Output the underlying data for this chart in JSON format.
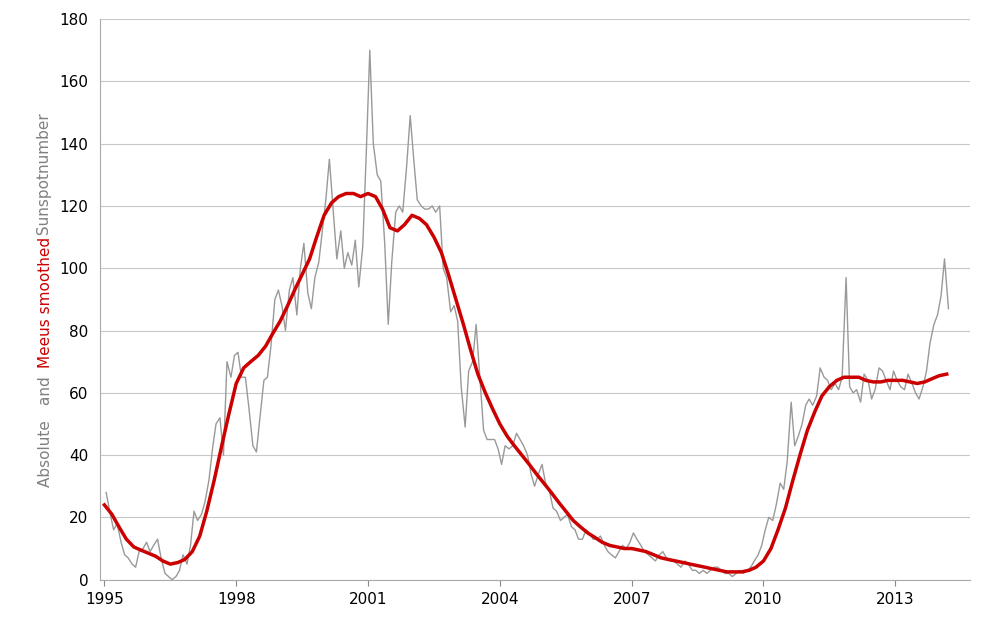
{
  "xlim": [
    1994.9,
    2014.7
  ],
  "ylim": [
    0,
    180
  ],
  "yticks": [
    0,
    20,
    40,
    60,
    80,
    100,
    120,
    140,
    160,
    180
  ],
  "xticks": [
    1995,
    1998,
    2001,
    2004,
    2007,
    2010,
    2013
  ],
  "background_color": "#ffffff",
  "grid_color": "#c8c8c8",
  "raw_color": "#999999",
  "smooth_color": "#cc0000",
  "raw_linewidth": 1.0,
  "smooth_linewidth": 2.5,
  "tick_fontsize": 11,
  "label_fontsize": 11,
  "monthly_data": [
    [
      1995.04,
      28
    ],
    [
      1995.12,
      22
    ],
    [
      1995.21,
      16
    ],
    [
      1995.29,
      18
    ],
    [
      1995.38,
      12
    ],
    [
      1995.46,
      8
    ],
    [
      1995.54,
      7
    ],
    [
      1995.63,
      5
    ],
    [
      1995.71,
      4
    ],
    [
      1995.79,
      9
    ],
    [
      1995.88,
      10
    ],
    [
      1995.96,
      12
    ],
    [
      1996.04,
      9
    ],
    [
      1996.12,
      11
    ],
    [
      1996.21,
      13
    ],
    [
      1996.29,
      7
    ],
    [
      1996.38,
      2
    ],
    [
      1996.46,
      1
    ],
    [
      1996.54,
      0
    ],
    [
      1996.63,
      1
    ],
    [
      1996.71,
      3
    ],
    [
      1996.79,
      8
    ],
    [
      1996.88,
      5
    ],
    [
      1996.96,
      11
    ],
    [
      1997.04,
      22
    ],
    [
      1997.12,
      19
    ],
    [
      1997.21,
      21
    ],
    [
      1997.29,
      25
    ],
    [
      1997.38,
      32
    ],
    [
      1997.46,
      42
    ],
    [
      1997.54,
      50
    ],
    [
      1997.63,
      52
    ],
    [
      1997.71,
      40
    ],
    [
      1997.79,
      70
    ],
    [
      1997.88,
      65
    ],
    [
      1997.96,
      72
    ],
    [
      1998.04,
      73
    ],
    [
      1998.12,
      65
    ],
    [
      1998.21,
      65
    ],
    [
      1998.29,
      55
    ],
    [
      1998.38,
      43
    ],
    [
      1998.46,
      41
    ],
    [
      1998.54,
      52
    ],
    [
      1998.63,
      64
    ],
    [
      1998.71,
      65
    ],
    [
      1998.79,
      75
    ],
    [
      1998.88,
      90
    ],
    [
      1998.96,
      93
    ],
    [
      1999.04,
      88
    ],
    [
      1999.12,
      80
    ],
    [
      1999.21,
      93
    ],
    [
      1999.29,
      97
    ],
    [
      1999.38,
      85
    ],
    [
      1999.46,
      100
    ],
    [
      1999.54,
      108
    ],
    [
      1999.63,
      92
    ],
    [
      1999.71,
      87
    ],
    [
      1999.79,
      97
    ],
    [
      1999.88,
      102
    ],
    [
      1999.96,
      112
    ],
    [
      2000.04,
      122
    ],
    [
      2000.12,
      135
    ],
    [
      2000.21,
      118
    ],
    [
      2000.29,
      103
    ],
    [
      2000.38,
      112
    ],
    [
      2000.46,
      100
    ],
    [
      2000.54,
      105
    ],
    [
      2000.63,
      101
    ],
    [
      2000.71,
      109
    ],
    [
      2000.79,
      94
    ],
    [
      2000.88,
      107
    ],
    [
      2000.96,
      137
    ],
    [
      2001.04,
      170
    ],
    [
      2001.12,
      140
    ],
    [
      2001.21,
      130
    ],
    [
      2001.29,
      128
    ],
    [
      2001.38,
      108
    ],
    [
      2001.46,
      82
    ],
    [
      2001.54,
      102
    ],
    [
      2001.63,
      118
    ],
    [
      2001.71,
      120
    ],
    [
      2001.79,
      118
    ],
    [
      2001.88,
      133
    ],
    [
      2001.96,
      149
    ],
    [
      2002.04,
      135
    ],
    [
      2002.12,
      122
    ],
    [
      2002.21,
      120
    ],
    [
      2002.29,
      119
    ],
    [
      2002.38,
      119
    ],
    [
      2002.46,
      120
    ],
    [
      2002.54,
      118
    ],
    [
      2002.63,
      120
    ],
    [
      2002.71,
      100
    ],
    [
      2002.79,
      97
    ],
    [
      2002.88,
      86
    ],
    [
      2002.96,
      88
    ],
    [
      2003.04,
      83
    ],
    [
      2003.12,
      62
    ],
    [
      2003.21,
      49
    ],
    [
      2003.29,
      67
    ],
    [
      2003.38,
      70
    ],
    [
      2003.46,
      82
    ],
    [
      2003.54,
      66
    ],
    [
      2003.63,
      48
    ],
    [
      2003.71,
      45
    ],
    [
      2003.79,
      45
    ],
    [
      2003.88,
      45
    ],
    [
      2003.96,
      42
    ],
    [
      2004.04,
      37
    ],
    [
      2004.12,
      43
    ],
    [
      2004.21,
      42
    ],
    [
      2004.29,
      43
    ],
    [
      2004.38,
      47
    ],
    [
      2004.46,
      45
    ],
    [
      2004.54,
      43
    ],
    [
      2004.63,
      40
    ],
    [
      2004.71,
      34
    ],
    [
      2004.79,
      30
    ],
    [
      2004.88,
      34
    ],
    [
      2004.96,
      37
    ],
    [
      2005.04,
      31
    ],
    [
      2005.12,
      29
    ],
    [
      2005.21,
      23
    ],
    [
      2005.29,
      22
    ],
    [
      2005.38,
      19
    ],
    [
      2005.46,
      20
    ],
    [
      2005.54,
      21
    ],
    [
      2005.63,
      17
    ],
    [
      2005.71,
      16
    ],
    [
      2005.79,
      13
    ],
    [
      2005.88,
      13
    ],
    [
      2005.96,
      16
    ],
    [
      2006.04,
      15
    ],
    [
      2006.12,
      13
    ],
    [
      2006.21,
      13
    ],
    [
      2006.29,
      14
    ],
    [
      2006.38,
      11
    ],
    [
      2006.46,
      9
    ],
    [
      2006.54,
      8
    ],
    [
      2006.63,
      7
    ],
    [
      2006.71,
      9
    ],
    [
      2006.79,
      11
    ],
    [
      2006.88,
      10
    ],
    [
      2006.96,
      12
    ],
    [
      2007.04,
      15
    ],
    [
      2007.12,
      13
    ],
    [
      2007.21,
      11
    ],
    [
      2007.29,
      9
    ],
    [
      2007.38,
      8
    ],
    [
      2007.46,
      7
    ],
    [
      2007.54,
      6
    ],
    [
      2007.63,
      8
    ],
    [
      2007.71,
      9
    ],
    [
      2007.79,
      7
    ],
    [
      2007.88,
      6
    ],
    [
      2007.96,
      6
    ],
    [
      2008.04,
      5
    ],
    [
      2008.12,
      4
    ],
    [
      2008.21,
      6
    ],
    [
      2008.29,
      5
    ],
    [
      2008.38,
      3
    ],
    [
      2008.46,
      3
    ],
    [
      2008.54,
      2
    ],
    [
      2008.63,
      3
    ],
    [
      2008.71,
      2
    ],
    [
      2008.79,
      3
    ],
    [
      2008.88,
      4
    ],
    [
      2008.96,
      4
    ],
    [
      2009.04,
      3
    ],
    [
      2009.12,
      2
    ],
    [
      2009.21,
      2
    ],
    [
      2009.29,
      1
    ],
    [
      2009.38,
      2
    ],
    [
      2009.46,
      3
    ],
    [
      2009.54,
      2
    ],
    [
      2009.63,
      3
    ],
    [
      2009.71,
      4
    ],
    [
      2009.79,
      6
    ],
    [
      2009.88,
      8
    ],
    [
      2009.96,
      11
    ],
    [
      2010.04,
      16
    ],
    [
      2010.12,
      20
    ],
    [
      2010.21,
      19
    ],
    [
      2010.29,
      24
    ],
    [
      2010.38,
      31
    ],
    [
      2010.46,
      29
    ],
    [
      2010.54,
      38
    ],
    [
      2010.63,
      57
    ],
    [
      2010.71,
      43
    ],
    [
      2010.79,
      46
    ],
    [
      2010.88,
      50
    ],
    [
      2010.96,
      56
    ],
    [
      2011.04,
      58
    ],
    [
      2011.12,
      56
    ],
    [
      2011.21,
      59
    ],
    [
      2011.29,
      68
    ],
    [
      2011.38,
      65
    ],
    [
      2011.46,
      64
    ],
    [
      2011.54,
      61
    ],
    [
      2011.63,
      63
    ],
    [
      2011.71,
      61
    ],
    [
      2011.79,
      65
    ],
    [
      2011.88,
      97
    ],
    [
      2011.96,
      62
    ],
    [
      2012.04,
      60
    ],
    [
      2012.12,
      61
    ],
    [
      2012.21,
      57
    ],
    [
      2012.29,
      66
    ],
    [
      2012.38,
      64
    ],
    [
      2012.46,
      58
    ],
    [
      2012.54,
      61
    ],
    [
      2012.63,
      68
    ],
    [
      2012.71,
      67
    ],
    [
      2012.79,
      64
    ],
    [
      2012.88,
      61
    ],
    [
      2012.96,
      67
    ],
    [
      2013.04,
      64
    ],
    [
      2013.12,
      62
    ],
    [
      2013.21,
      61
    ],
    [
      2013.29,
      66
    ],
    [
      2013.38,
      63
    ],
    [
      2013.46,
      60
    ],
    [
      2013.54,
      58
    ],
    [
      2013.63,
      62
    ],
    [
      2013.71,
      67
    ],
    [
      2013.79,
      76
    ],
    [
      2013.88,
      82
    ],
    [
      2013.96,
      85
    ],
    [
      2014.04,
      91
    ],
    [
      2014.12,
      103
    ],
    [
      2014.21,
      87
    ]
  ],
  "smooth_data": [
    [
      1995.0,
      24.0
    ],
    [
      1995.17,
      21.0
    ],
    [
      1995.33,
      17.0
    ],
    [
      1995.5,
      13.0
    ],
    [
      1995.67,
      10.5
    ],
    [
      1995.83,
      9.5
    ],
    [
      1996.0,
      8.5
    ],
    [
      1996.17,
      7.5
    ],
    [
      1996.33,
      6.0
    ],
    [
      1996.5,
      5.0
    ],
    [
      1996.67,
      5.5
    ],
    [
      1996.83,
      6.5
    ],
    [
      1997.0,
      9.0
    ],
    [
      1997.17,
      14.0
    ],
    [
      1997.33,
      22.0
    ],
    [
      1997.5,
      32.0
    ],
    [
      1997.67,
      43.0
    ],
    [
      1997.83,
      53.0
    ],
    [
      1998.0,
      63.0
    ],
    [
      1998.17,
      68.0
    ],
    [
      1998.33,
      70.0
    ],
    [
      1998.5,
      72.0
    ],
    [
      1998.67,
      75.0
    ],
    [
      1998.83,
      79.0
    ],
    [
      1999.0,
      83.0
    ],
    [
      1999.17,
      88.0
    ],
    [
      1999.33,
      93.0
    ],
    [
      1999.5,
      98.0
    ],
    [
      1999.67,
      103.0
    ],
    [
      1999.83,
      110.0
    ],
    [
      2000.0,
      117.0
    ],
    [
      2000.17,
      121.0
    ],
    [
      2000.33,
      123.0
    ],
    [
      2000.5,
      124.0
    ],
    [
      2000.67,
      124.0
    ],
    [
      2000.83,
      123.0
    ],
    [
      2001.0,
      124.0
    ],
    [
      2001.17,
      123.0
    ],
    [
      2001.33,
      119.0
    ],
    [
      2001.5,
      113.0
    ],
    [
      2001.67,
      112.0
    ],
    [
      2001.83,
      114.0
    ],
    [
      2002.0,
      117.0
    ],
    [
      2002.17,
      116.0
    ],
    [
      2002.33,
      114.0
    ],
    [
      2002.5,
      110.0
    ],
    [
      2002.67,
      105.0
    ],
    [
      2002.83,
      98.0
    ],
    [
      2003.0,
      90.0
    ],
    [
      2003.17,
      82.0
    ],
    [
      2003.33,
      74.0
    ],
    [
      2003.5,
      66.0
    ],
    [
      2003.67,
      60.0
    ],
    [
      2003.83,
      55.0
    ],
    [
      2004.0,
      50.0
    ],
    [
      2004.17,
      46.0
    ],
    [
      2004.33,
      43.0
    ],
    [
      2004.5,
      40.0
    ],
    [
      2004.67,
      37.0
    ],
    [
      2004.83,
      34.0
    ],
    [
      2005.0,
      31.0
    ],
    [
      2005.17,
      28.0
    ],
    [
      2005.33,
      25.0
    ],
    [
      2005.5,
      22.0
    ],
    [
      2005.67,
      19.0
    ],
    [
      2005.83,
      17.0
    ],
    [
      2006.0,
      15.0
    ],
    [
      2006.17,
      13.5
    ],
    [
      2006.33,
      12.0
    ],
    [
      2006.5,
      11.0
    ],
    [
      2006.67,
      10.5
    ],
    [
      2006.83,
      10.0
    ],
    [
      2007.0,
      10.0
    ],
    [
      2007.17,
      9.5
    ],
    [
      2007.33,
      9.0
    ],
    [
      2007.5,
      8.0
    ],
    [
      2007.67,
      7.0
    ],
    [
      2007.83,
      6.5
    ],
    [
      2008.0,
      6.0
    ],
    [
      2008.17,
      5.5
    ],
    [
      2008.33,
      5.0
    ],
    [
      2008.5,
      4.5
    ],
    [
      2008.67,
      4.0
    ],
    [
      2008.83,
      3.5
    ],
    [
      2009.0,
      3.0
    ],
    [
      2009.17,
      2.5
    ],
    [
      2009.33,
      2.5
    ],
    [
      2009.5,
      2.5
    ],
    [
      2009.67,
      3.0
    ],
    [
      2009.83,
      4.0
    ],
    [
      2010.0,
      6.0
    ],
    [
      2010.17,
      10.0
    ],
    [
      2010.33,
      16.0
    ],
    [
      2010.5,
      23.0
    ],
    [
      2010.67,
      32.0
    ],
    [
      2010.83,
      40.0
    ],
    [
      2011.0,
      48.0
    ],
    [
      2011.17,
      54.0
    ],
    [
      2011.33,
      59.0
    ],
    [
      2011.5,
      62.0
    ],
    [
      2011.67,
      64.0
    ],
    [
      2011.83,
      65.0
    ],
    [
      2012.0,
      65.0
    ],
    [
      2012.17,
      65.0
    ],
    [
      2012.33,
      64.0
    ],
    [
      2012.5,
      63.5
    ],
    [
      2012.67,
      63.5
    ],
    [
      2012.83,
      64.0
    ],
    [
      2013.0,
      64.0
    ],
    [
      2013.17,
      64.0
    ],
    [
      2013.33,
      63.5
    ],
    [
      2013.5,
      63.0
    ],
    [
      2013.67,
      63.5
    ],
    [
      2013.83,
      64.5
    ],
    [
      2014.0,
      65.5
    ],
    [
      2014.17,
      66.0
    ]
  ],
  "ylabel_parts": [
    [
      "Absolute ",
      "#808080"
    ],
    [
      "and ",
      "#808080"
    ],
    [
      "Meeus smoothed",
      "#cc0000"
    ],
    [
      " Sunspotnumber",
      "#808080"
    ]
  ]
}
